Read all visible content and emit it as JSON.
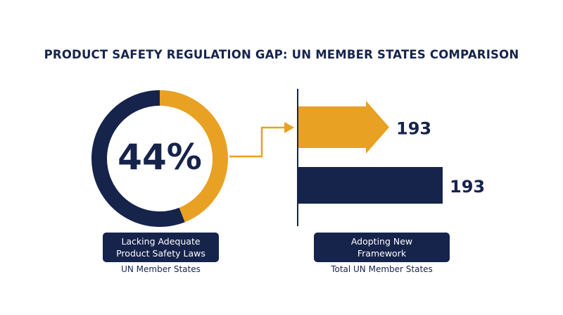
{
  "title": "PRODUCT SAFETY REGULATION GAP: UN MEMBER STATES COMPARISON",
  "colors": {
    "navy": "#16234b",
    "gold": "#e8a122",
    "white": "#ffffff"
  },
  "chart_data": [
    {
      "type": "pie",
      "title": "",
      "center_label": "44%",
      "slices": [
        {
          "label": "Lacking Adequate Product Safety Laws",
          "value": 44,
          "color": "#e8a122"
        },
        {
          "label": "",
          "value": 56,
          "color": "#16234b"
        }
      ],
      "caption_lines": [
        "Lacking Adequate",
        "Product Safety Laws"
      ],
      "subcaption": "UN Member States"
    },
    {
      "type": "bar",
      "orientation": "horizontal",
      "categories": [
        "Adopting New Framework",
        "Total UN Member States"
      ],
      "values": [
        193,
        193
      ],
      "data_labels": [
        "193",
        "193"
      ],
      "colors": [
        "#e8a122",
        "#16234b"
      ],
      "caption_lines": [
        "Adopting New",
        "Framework"
      ],
      "subcaption": "Total UN Member States"
    }
  ]
}
